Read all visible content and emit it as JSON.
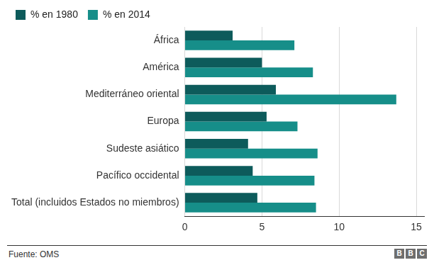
{
  "chart_data": {
    "type": "bar",
    "orientation": "horizontal",
    "categories": [
      "África",
      "América",
      "Mediterráneo oriental",
      "Europa",
      "Sudeste asiático",
      "Pacífico occidental",
      "Total (incluidos Estados no miembros)"
    ],
    "series": [
      {
        "name": "% en 1980",
        "color": "#0d5b5b",
        "values": [
          3.1,
          5.0,
          5.9,
          5.3,
          4.1,
          4.4,
          4.7
        ]
      },
      {
        "name": "% en 2014",
        "color": "#168e89",
        "values": [
          7.1,
          8.3,
          13.7,
          7.3,
          8.6,
          8.4,
          8.5
        ]
      }
    ],
    "xlim": [
      0,
      15.5
    ],
    "xticks": [
      0,
      5,
      10,
      15
    ],
    "grid": true,
    "legend": "top-left",
    "source": "Fuente: OMS",
    "credit": "BBC"
  }
}
